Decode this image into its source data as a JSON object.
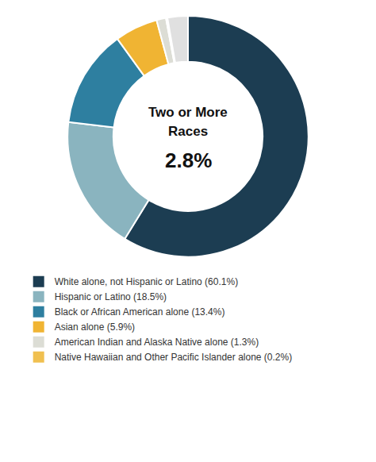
{
  "chart_data": {
    "type": "donut",
    "categories": [
      "White alone, not Hispanic or Latino (60.1%)",
      "Hispanic or Latino (18.5%)",
      "Black or African American alone (13.4%)",
      "Asian alone (5.9%)",
      "American Indian and Alaska Native alone (1.3%)",
      "Native Hawaiian and Other Pacific Islander alone (0.2%)",
      null
    ],
    "values": [
      60.1,
      18.5,
      13.4,
      5.9,
      1.3,
      0.2,
      2.8
    ],
    "colors": [
      "#1c3d52",
      "#8ab4bf",
      "#2e7fa0",
      "#f0b433",
      "#dcddd5",
      "#f0c050",
      "#e0e0e0"
    ],
    "annotations": [
      "Two or More",
      "Races",
      "2.8%"
    ],
    "legend": "bottom"
  }
}
